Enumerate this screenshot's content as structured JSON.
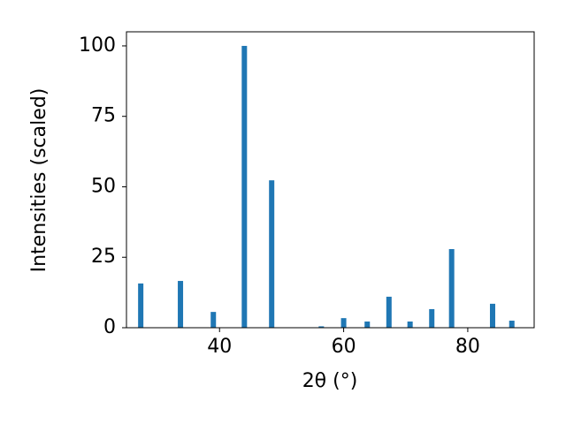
{
  "chart_data": {
    "type": "bar",
    "xlabel": "2θ (°)",
    "ylabel": "Intensities (scaled)",
    "x": [
      27.3,
      33.7,
      39.0,
      44.0,
      48.4,
      56.4,
      60.0,
      63.8,
      67.3,
      70.7,
      74.2,
      77.4,
      84.0,
      87.1
    ],
    "values": [
      15.7,
      16.6,
      5.6,
      100,
      52.3,
      0.5,
      3.4,
      2.2,
      11,
      2.2,
      6.6,
      27.9,
      8.5,
      2.5
    ],
    "color": "#1f77b4",
    "xlim": [
      25,
      90.7
    ],
    "xticks": [
      40,
      60,
      80
    ],
    "ylim": [
      0,
      105
    ],
    "yticks": [
      0,
      25,
      50,
      75,
      100
    ],
    "grid": false
  }
}
